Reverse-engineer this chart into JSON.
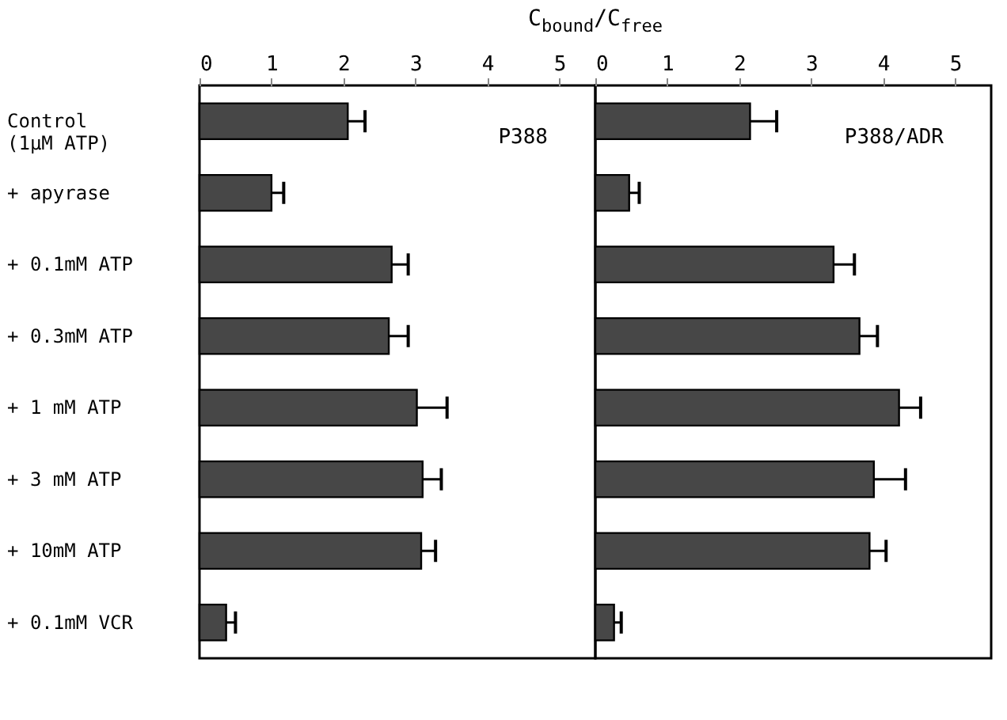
{
  "chart_data": [
    {
      "type": "bar",
      "orientation": "horizontal",
      "xlabel": "C$_{bound}$/C$_{free}$",
      "categories": [
        "Control\n(1μM ATP)",
        "+ apyrase",
        "+ 0.1mM ATP",
        "+ 0.3mM ATP",
        "+ 1 mM ATP",
        "+ 3 mM ATP",
        "+ 10mM ATP",
        "+ 0.1mM VCR"
      ],
      "values": [
        2.06,
        1.0,
        2.67,
        2.63,
        3.02,
        3.1,
        3.08,
        0.37
      ],
      "errors": [
        0.24,
        0.17,
        0.23,
        0.27,
        0.42,
        0.26,
        0.2,
        0.13
      ],
      "color": "#474747",
      "xlim": [
        0,
        5.5
      ],
      "xticks": [
        0,
        1,
        2,
        3,
        4,
        5
      ],
      "grid": false,
      "annotations": [
        "P388"
      ]
    },
    {
      "type": "bar",
      "orientation": "horizontal",
      "categories": [
        null,
        null,
        null,
        null,
        null,
        null,
        null,
        null
      ],
      "values": [
        2.15,
        0.47,
        3.31,
        3.67,
        4.22,
        3.87,
        3.81,
        0.26
      ],
      "errors": [
        0.37,
        0.14,
        0.29,
        0.25,
        0.3,
        0.44,
        0.23,
        0.1
      ],
      "color": "#474747",
      "xlim": [
        0,
        5.5
      ],
      "xticks": [
        0,
        1,
        2,
        3,
        4,
        5
      ],
      "grid": false,
      "tick_labels": "x",
      "annotations": [
        "P388/ADR"
      ]
    }
  ]
}
